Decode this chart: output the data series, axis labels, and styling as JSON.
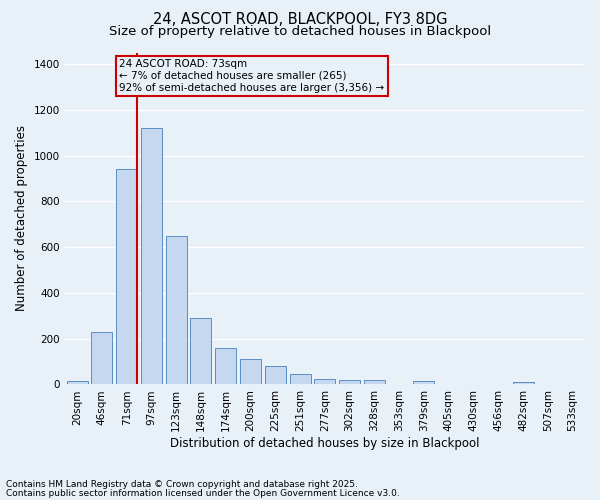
{
  "title": "24, ASCOT ROAD, BLACKPOOL, FY3 8DG",
  "subtitle": "Size of property relative to detached houses in Blackpool",
  "xlabel": "Distribution of detached houses by size in Blackpool",
  "ylabel": "Number of detached properties",
  "footnote1": "Contains HM Land Registry data © Crown copyright and database right 2025.",
  "footnote2": "Contains public sector information licensed under the Open Government Licence v3.0.",
  "bar_labels": [
    "20sqm",
    "46sqm",
    "71sqm",
    "97sqm",
    "123sqm",
    "148sqm",
    "174sqm",
    "200sqm",
    "225sqm",
    "251sqm",
    "277sqm",
    "302sqm",
    "328sqm",
    "353sqm",
    "379sqm",
    "405sqm",
    "430sqm",
    "456sqm",
    "482sqm",
    "507sqm",
    "533sqm"
  ],
  "bar_values": [
    15,
    230,
    940,
    1120,
    650,
    290,
    160,
    110,
    80,
    45,
    25,
    20,
    20,
    0,
    15,
    0,
    0,
    0,
    10,
    0,
    0
  ],
  "bar_color": "#c5d8f0",
  "bar_edge_color": "#5b8ec4",
  "background_color": "#e8f0f8",
  "grid_color": "#ffffff",
  "vline_bar_index": 2,
  "vline_color": "#cc0000",
  "annotation_text": "24 ASCOT ROAD: 73sqm\n← 7% of detached houses are smaller (265)\n92% of semi-detached houses are larger (3,356) →",
  "annotation_box_color": "#cc0000",
  "ylim": [
    0,
    1450
  ],
  "yticks": [
    0,
    200,
    400,
    600,
    800,
    1000,
    1200,
    1400
  ],
  "title_fontsize": 10.5,
  "subtitle_fontsize": 9.5,
  "axis_label_fontsize": 8.5,
  "tick_fontsize": 7.5,
  "annotation_fontsize": 7.5,
  "footnote_fontsize": 6.5
}
